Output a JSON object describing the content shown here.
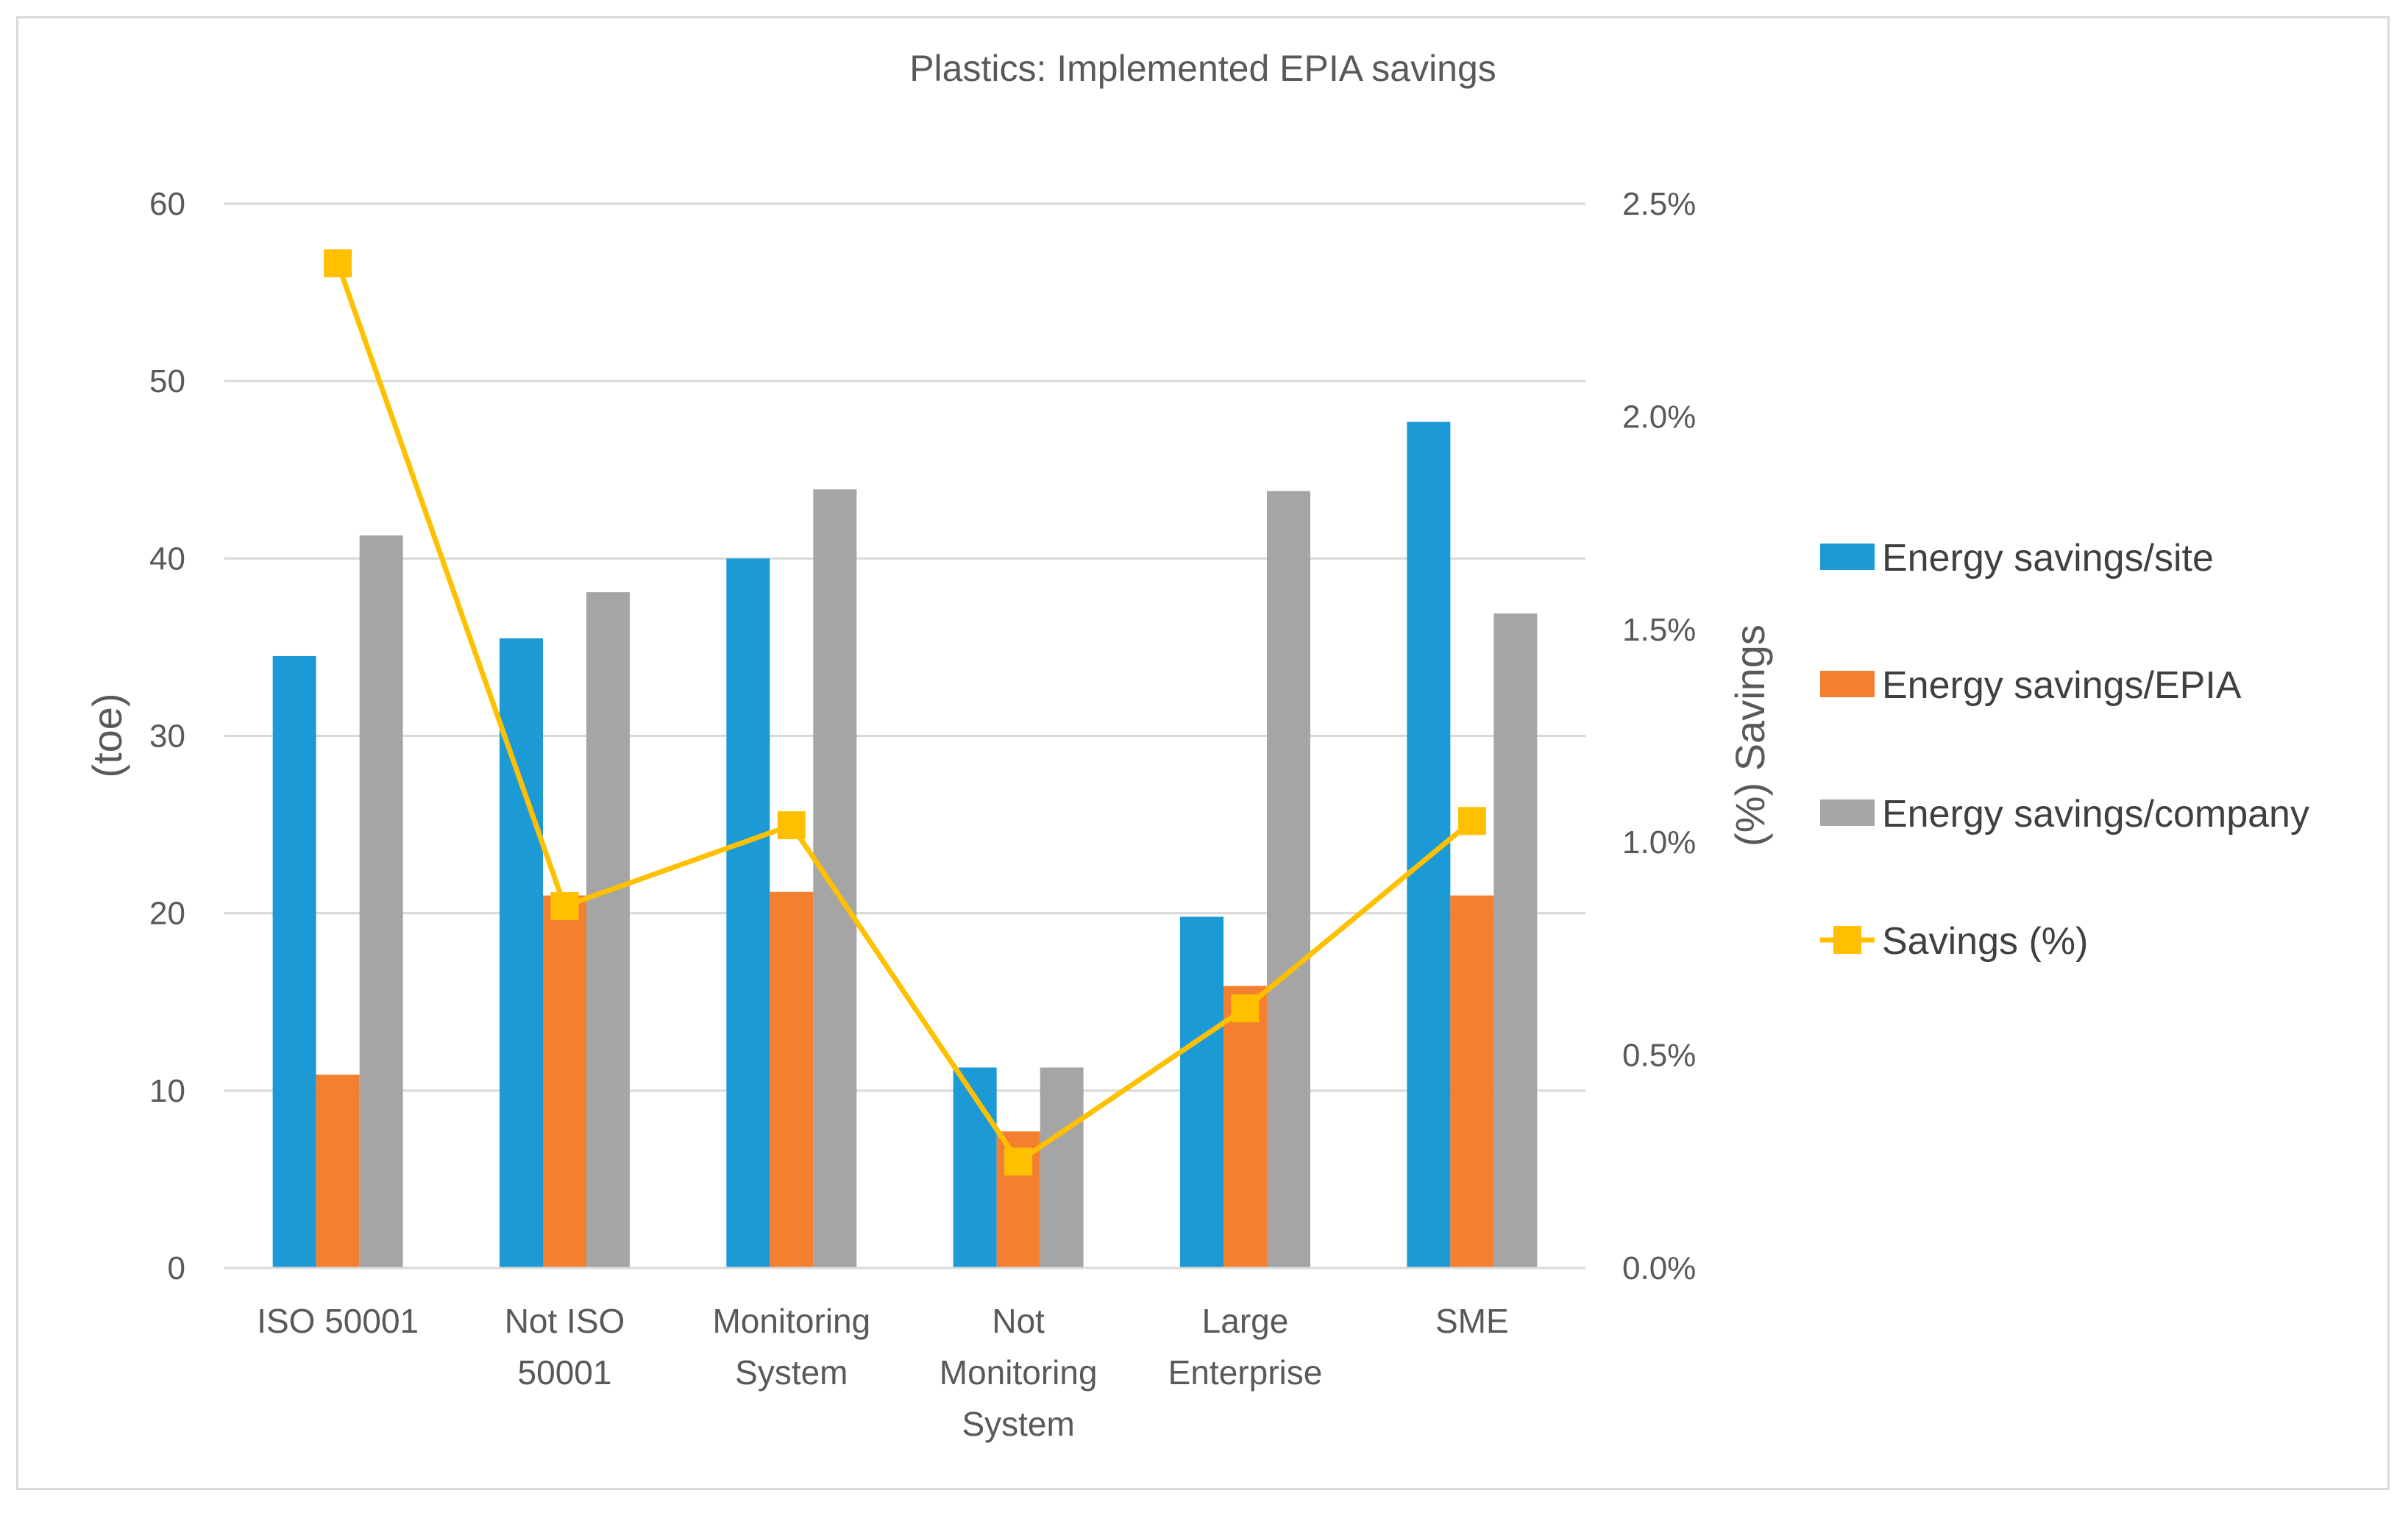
{
  "chart_data": {
    "type": "bar",
    "title": "Plastics: Implemented EPIA savings",
    "categories": [
      [
        "ISO 50001"
      ],
      [
        "Not ISO",
        "50001"
      ],
      [
        "Monitoring",
        "System"
      ],
      [
        "Not",
        "Monitoring",
        "System"
      ],
      [
        "Large",
        "Enterprise"
      ],
      [
        "SME"
      ]
    ],
    "series": [
      {
        "name": "Energy savings/site",
        "type": "bar",
        "axis": "left",
        "color": "#1b9ad6",
        "values": [
          34.5,
          35.5,
          40.0,
          11.3,
          19.8,
          47.7
        ]
      },
      {
        "name": "Energy savings/EPIA",
        "type": "bar",
        "axis": "left",
        "color": "#f47f30",
        "values": [
          10.9,
          21.0,
          21.2,
          7.7,
          15.9,
          21.0
        ]
      },
      {
        "name": "Energy savings/company",
        "type": "bar",
        "axis": "left",
        "color": "#a5a5a5",
        "values": [
          41.3,
          38.1,
          43.9,
          11.3,
          43.8,
          36.9
        ]
      },
      {
        "name": "Savings (%)",
        "type": "line",
        "axis": "right",
        "color": "#ffc000",
        "values": [
          2.36,
          0.85,
          1.04,
          0.25,
          0.61,
          1.05
        ]
      }
    ],
    "ylabel": "(toe)",
    "y2label": "(%) Savings",
    "ylim": [
      0,
      60
    ],
    "yticks": [
      "0",
      "10",
      "20",
      "30",
      "40",
      "50",
      "60"
    ],
    "y2lim": [
      0,
      2.5
    ],
    "y2ticks": [
      "0.0%",
      "0.5%",
      "1.0%",
      "1.5%",
      "2.0%",
      "2.5%"
    ],
    "legend_position": "right",
    "grid": true
  }
}
